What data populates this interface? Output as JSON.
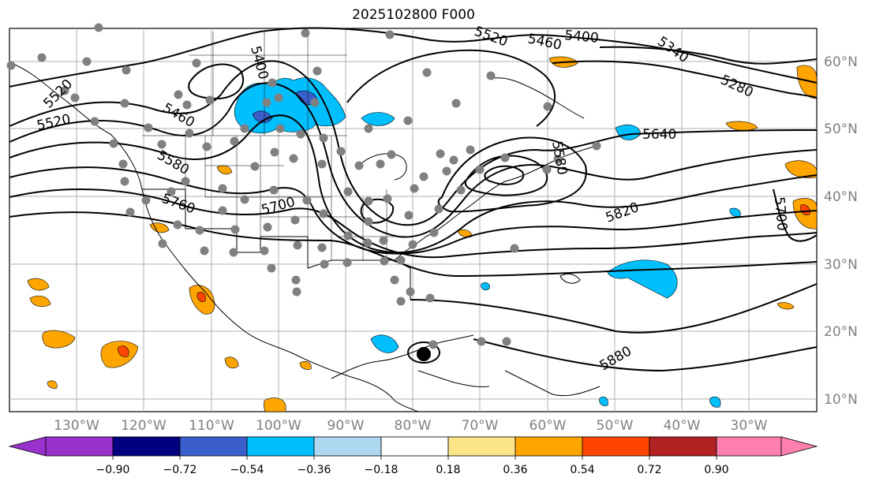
{
  "title": "2025102800 F000",
  "map": {
    "lat_labels": [
      "60°N",
      "50°N",
      "40°N",
      "30°N",
      "20°N",
      "10°N"
    ],
    "lon_labels": [
      "130°W",
      "120°W",
      "110°W",
      "100°W",
      "90°W",
      "80°W",
      "70°W",
      "60°W",
      "50°W",
      "40°W",
      "30°W"
    ],
    "contour_labels": [
      "5520",
      "5460",
      "5400",
      "5340",
      "5280",
      "5640",
      "5580",
      "5700",
      "5760",
      "5820",
      "5880",
      "5520",
      "5460",
      "5580",
      "5700",
      "5400",
      "5520"
    ],
    "contour_color": "#000000",
    "land_outline_color": "#000000",
    "station_color": "#808080",
    "storm_center_color": "#000000"
  },
  "colorbar": {
    "ticks": [
      "−0.90",
      "−0.72",
      "−0.54",
      "−0.36",
      "−0.18",
      "0.18",
      "0.36",
      "0.54",
      "0.72",
      "0.90"
    ],
    "colors": [
      "#9932cc",
      "#000080",
      "#3a5fcd",
      "#00bfff",
      "#add8f0",
      "#ffffff",
      "#fde68a",
      "#ffa500",
      "#ff4500",
      "#b22222",
      "#ff7fae"
    ]
  }
}
